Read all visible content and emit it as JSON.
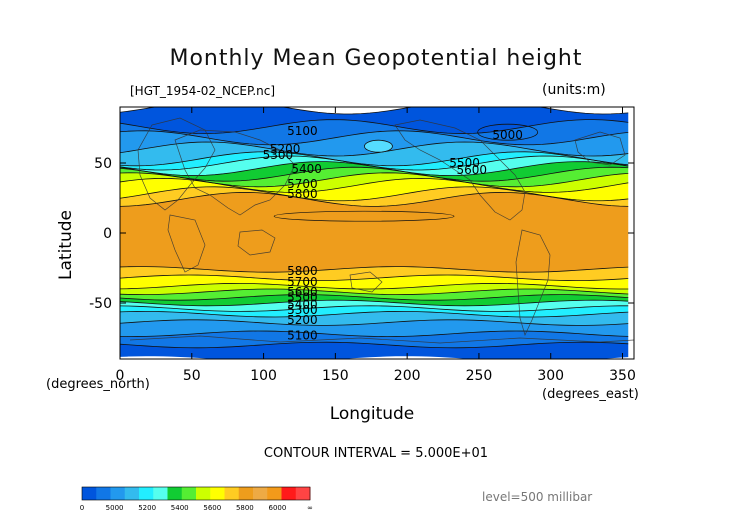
{
  "chart_data": {
    "type": "heatmap",
    "title": "Monthly Mean Geopotential height",
    "file_label": "[HGT_1954-02_NCEP.nc]",
    "units_label": "(units:m)",
    "xlabel": "Longitude",
    "ylabel": "Latitude",
    "x_unit_label": "(degrees_east)",
    "y_unit_label": "(degrees_north)",
    "xlim": [
      0,
      358
    ],
    "ylim": [
      -90,
      90
    ],
    "x_ticks": [
      "0",
      "50",
      "100",
      "150",
      "200",
      "250",
      "300",
      "350"
    ],
    "y_ticks": [
      "50",
      "0",
      "-50"
    ],
    "contour_interval_text": "CONTOUR INTERVAL = 5.000E+01",
    "level_text": "level=500 millibar",
    "contour_labels": [
      {
        "text": "5100",
        "lon": 127,
        "lat": 70
      },
      {
        "text": "5000",
        "lon": 270,
        "lat": 67
      },
      {
        "text": "5200",
        "lon": 115,
        "lat": 57
      },
      {
        "text": "5300",
        "lon": 110,
        "lat": 53
      },
      {
        "text": "5400",
        "lon": 130,
        "lat": 43
      },
      {
        "text": "5500",
        "lon": 240,
        "lat": 47
      },
      {
        "text": "5600",
        "lon": 245,
        "lat": 42
      },
      {
        "text": "5700",
        "lon": 127,
        "lat": 32
      },
      {
        "text": "5800",
        "lon": 127,
        "lat": 25
      },
      {
        "text": "5800",
        "lon": 127,
        "lat": -30
      },
      {
        "text": "5700",
        "lon": 127,
        "lat": -38
      },
      {
        "text": "5600",
        "lon": 127,
        "lat": -45
      },
      {
        "text": "5500",
        "lon": 127,
        "lat": -49
      },
      {
        "text": "5400",
        "lon": 127,
        "lat": -54
      },
      {
        "text": "5300",
        "lon": 127,
        "lat": -58
      },
      {
        "text": "5200",
        "lon": 127,
        "lat": -65
      },
      {
        "text": "5100",
        "lon": 127,
        "lat": -76
      }
    ],
    "colorbar": {
      "tick_labels": [
        "0",
        "5000",
        "5200",
        "5400",
        "5600",
        "5800",
        "6000",
        "∞"
      ],
      "colors": [
        "#0055dd",
        "#1177e6",
        "#2299ee",
        "#33bbee",
        "#22eeff",
        "#55ffee",
        "#11cc33",
        "#55ee33",
        "#ccff00",
        "#ffff00",
        "#ffcc22",
        "#ee9d1c",
        "#eeaa44",
        "#f39a1a",
        "#ff1a1a",
        "#ff4444"
      ]
    },
    "bands": [
      {
        "lat": [
          76,
          90
        ],
        "color": "#0055dd"
      },
      {
        "lat": [
          68,
          76
        ],
        "color": "#1177e6"
      },
      {
        "lat": [
          60,
          68
        ],
        "color": "#2299ee"
      },
      {
        "lat": [
          53,
          60
        ],
        "color": "#33bbee"
      },
      {
        "lat": [
          50,
          53
        ],
        "color": "#22eeff"
      },
      {
        "lat": [
          46,
          50
        ],
        "color": "#55ffee"
      },
      {
        "lat": [
          42,
          46
        ],
        "color": "#11cc33"
      },
      {
        "lat": [
          38,
          42
        ],
        "color": "#55ee33"
      },
      {
        "lat": [
          34,
          38
        ],
        "color": "#ccff00"
      },
      {
        "lat": [
          28,
          34
        ],
        "color": "#ffff00"
      },
      {
        "lat": [
          24,
          28
        ],
        "color": "#ffcc22"
      },
      {
        "lat": [
          -26,
          24
        ],
        "color": "#ee9d1c"
      },
      {
        "lat": [
          -32,
          -26
        ],
        "color": "#ffcc22"
      },
      {
        "lat": [
          -38,
          -32
        ],
        "color": "#ffff00"
      },
      {
        "lat": [
          -42,
          -38
        ],
        "color": "#ccff00"
      },
      {
        "lat": [
          -46,
          -42
        ],
        "color": "#55ee33"
      },
      {
        "lat": [
          -50,
          -46
        ],
        "color": "#11cc33"
      },
      {
        "lat": [
          -54,
          -50
        ],
        "color": "#55ffee"
      },
      {
        "lat": [
          -58,
          -54
        ],
        "color": "#22eeff"
      },
      {
        "lat": [
          -64,
          -58
        ],
        "color": "#33bbee"
      },
      {
        "lat": [
          -72,
          -64
        ],
        "color": "#2299ee"
      },
      {
        "lat": [
          -80,
          -72
        ],
        "color": "#1177e6"
      },
      {
        "lat": [
          -90,
          -80
        ],
        "color": "#0055dd"
      }
    ]
  }
}
